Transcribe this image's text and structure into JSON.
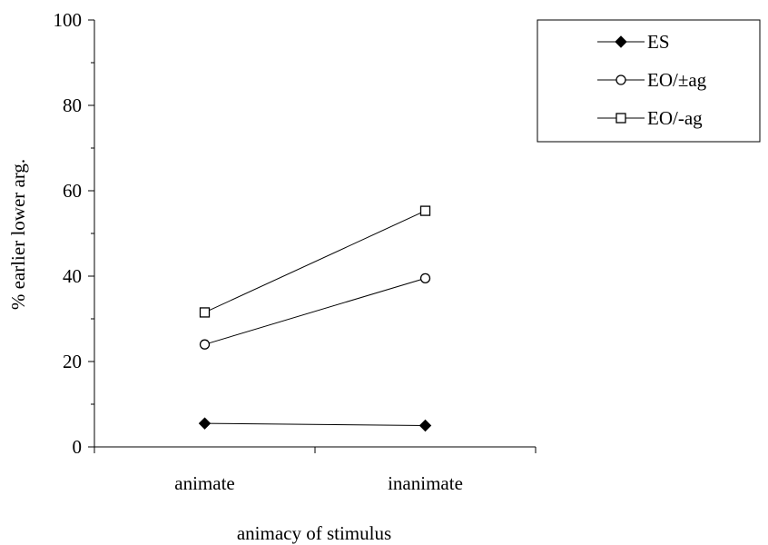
{
  "chart_data": {
    "type": "line",
    "title": "",
    "xlabel": "animacy of stimulus",
    "ylabel": "% earlier lower arg.",
    "categories": [
      "animate",
      "inanimate"
    ],
    "ylim": [
      0,
      100
    ],
    "yticks": [
      0,
      20,
      40,
      60,
      80,
      100
    ],
    "grid": false,
    "legend_position": "top-right",
    "series": [
      {
        "name": "ES",
        "marker": "filled-diamond",
        "values": [
          5.5,
          5.0
        ]
      },
      {
        "name": "EO/±ag",
        "marker": "open-circle",
        "values": [
          24.0,
          39.5
        ]
      },
      {
        "name": "EO/-ag",
        "marker": "open-square",
        "values": [
          31.5,
          55.3
        ]
      }
    ]
  }
}
